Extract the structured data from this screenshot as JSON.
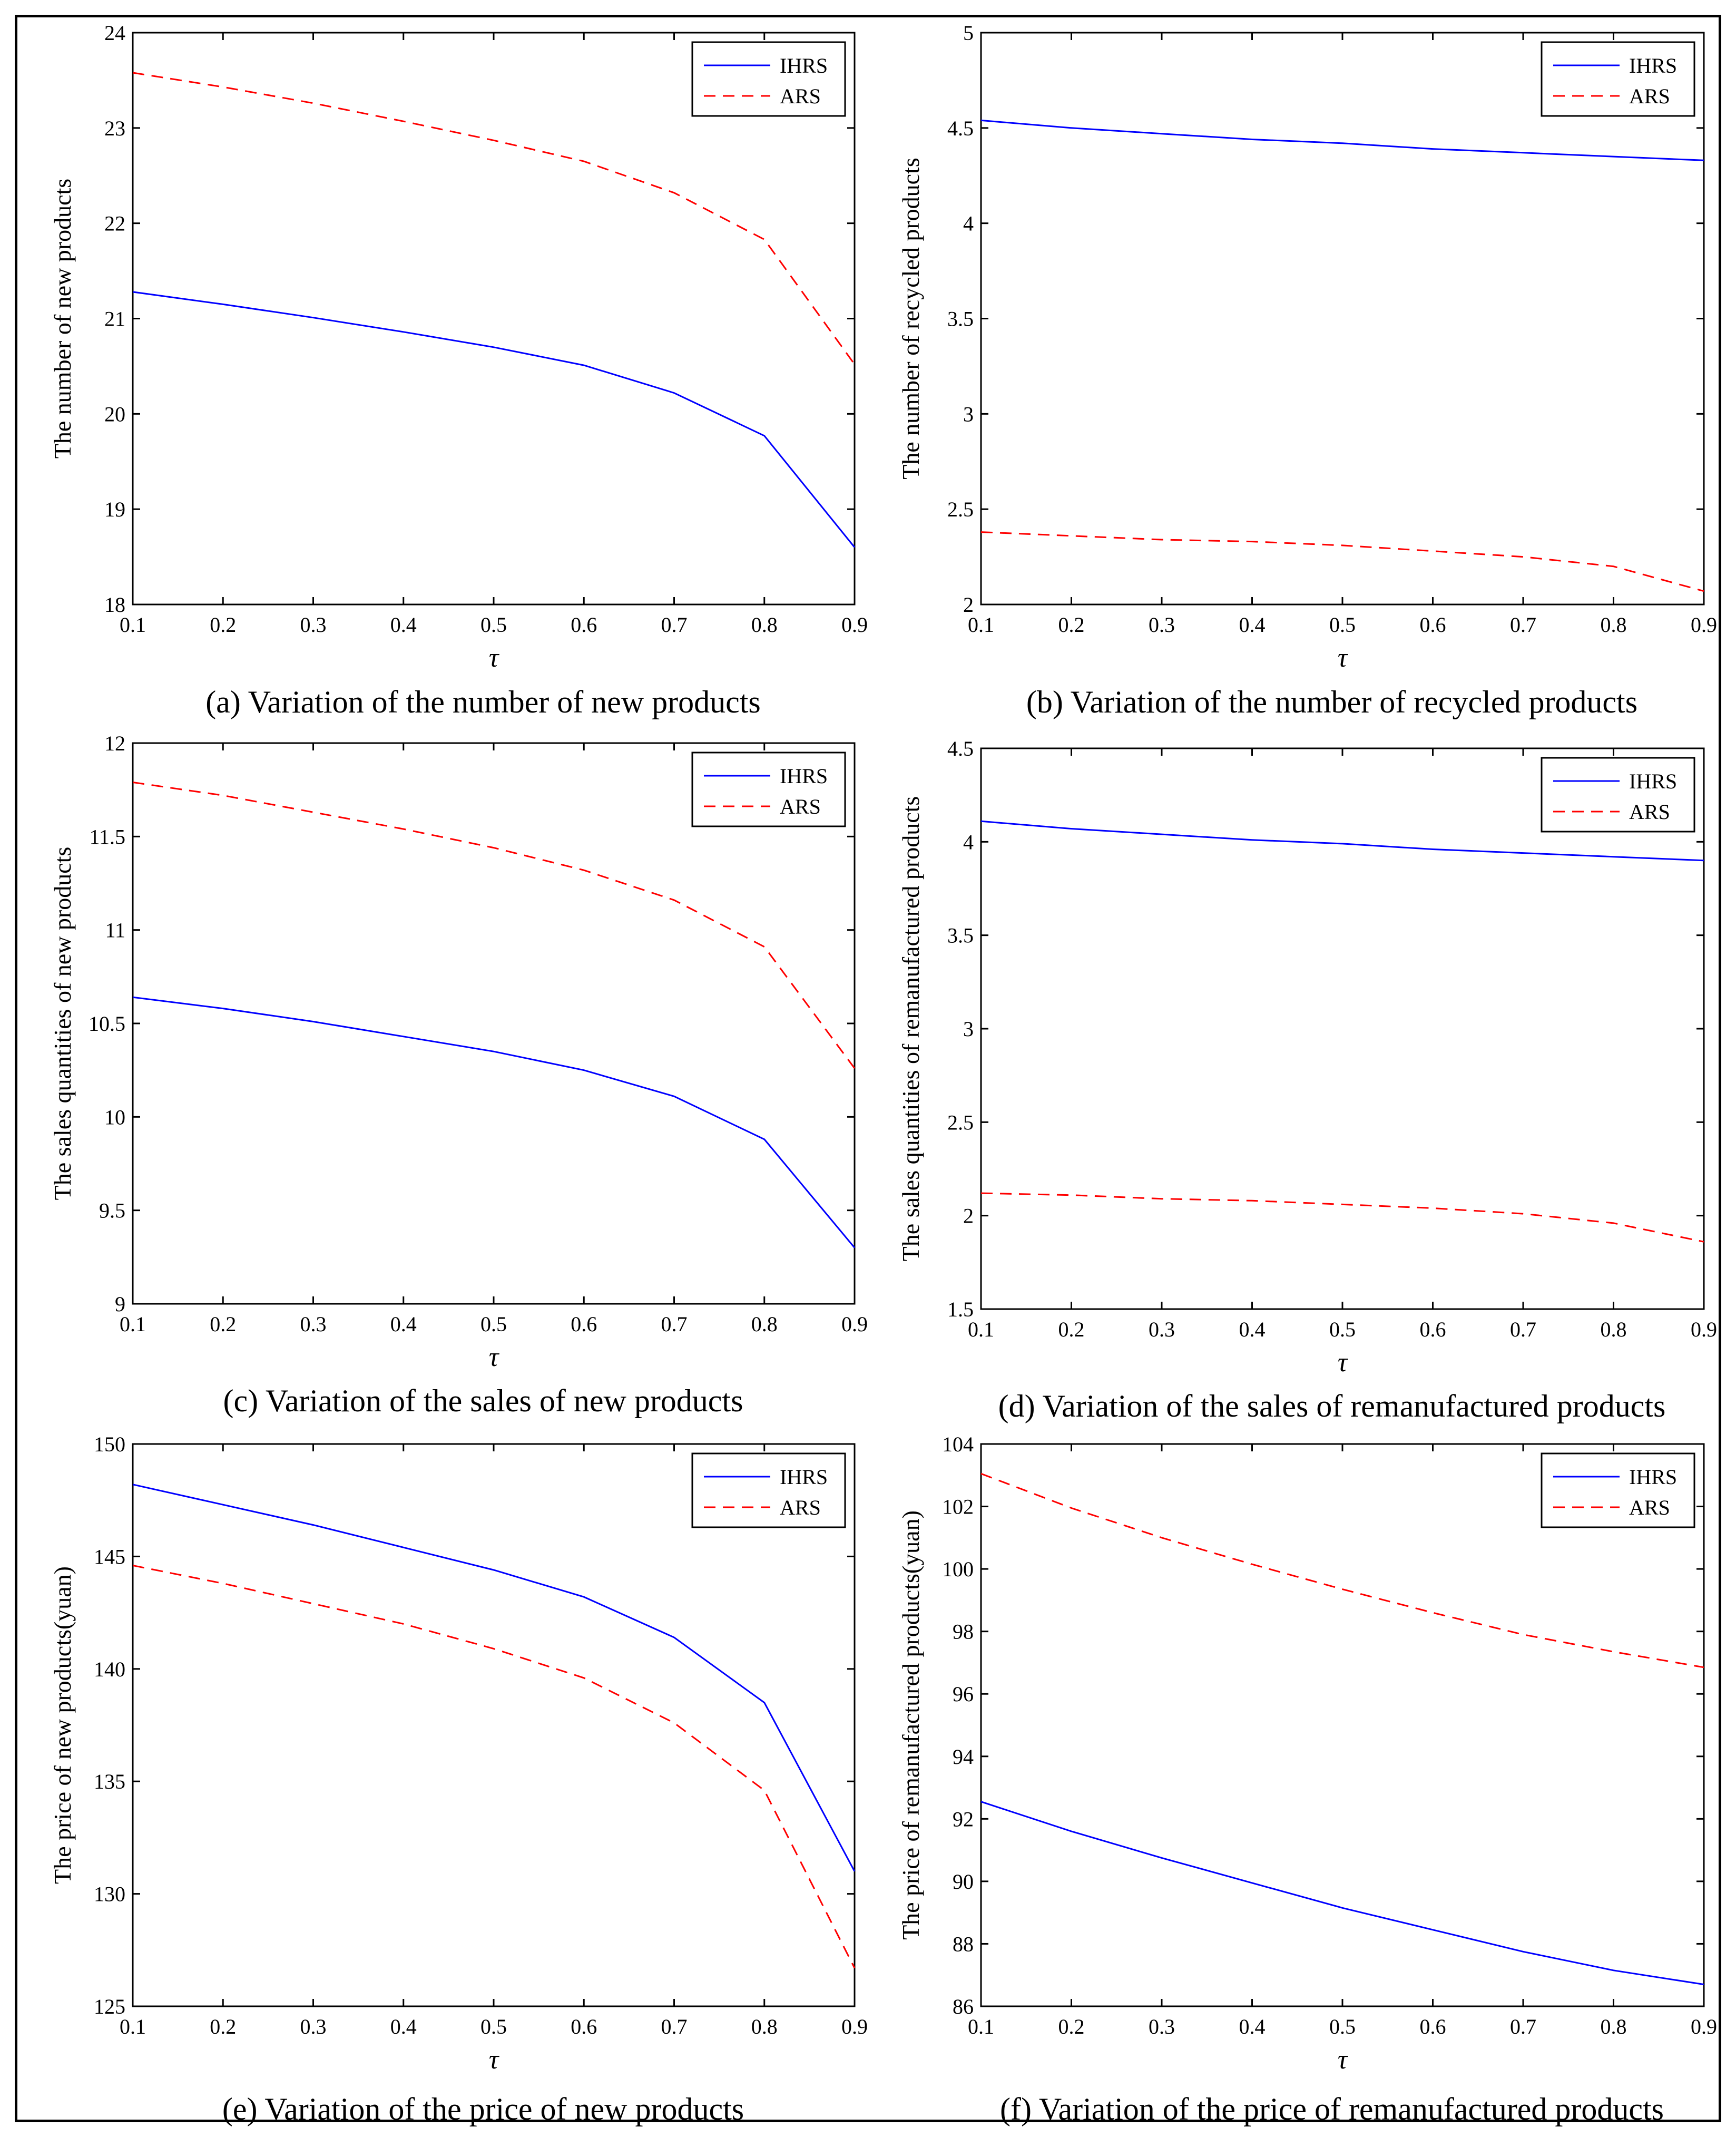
{
  "legend_labels": [
    "IHRS",
    "ARS"
  ],
  "series_colors": {
    "IHRS": "#0000ff",
    "ARS": "#ff0000"
  },
  "chart_data": [
    {
      "id": "a",
      "type": "line",
      "caption": "(a)    Variation of the number of new products",
      "xlabel": "τ",
      "ylabel": "The number of new products",
      "xlim": [
        0.1,
        0.9
      ],
      "ylim": [
        18,
        24
      ],
      "xticks": [
        0.1,
        0.2,
        0.3,
        0.4,
        0.5,
        0.6,
        0.7,
        0.8,
        0.9
      ],
      "xtick_labels": [
        "0.1",
        "0.2",
        "0.3",
        "0.4",
        "0.5",
        "0.6",
        "0.7",
        "0.8",
        "0.9"
      ],
      "yticks": [
        18,
        19,
        20,
        21,
        22,
        23,
        24
      ],
      "ytick_labels": [
        "18",
        "19",
        "20",
        "21",
        "22",
        "23",
        "24"
      ],
      "legend": "top-right",
      "grid": false,
      "x": [
        0.1,
        0.2,
        0.3,
        0.4,
        0.5,
        0.6,
        0.7,
        0.8,
        0.9
      ],
      "series": [
        {
          "name": "IHRS",
          "values": [
            21.28,
            21.15,
            21.01,
            20.86,
            20.7,
            20.51,
            20.22,
            19.77,
            18.6
          ]
        },
        {
          "name": "ARS",
          "values": [
            23.58,
            23.43,
            23.26,
            23.07,
            22.87,
            22.65,
            22.32,
            21.83,
            20.52
          ]
        }
      ]
    },
    {
      "id": "b",
      "type": "line",
      "caption": "(b)    Variation of the number of recycled products",
      "xlabel": "τ",
      "ylabel": "The number of recycled products",
      "xlim": [
        0.1,
        0.9
      ],
      "ylim": [
        2,
        5
      ],
      "xticks": [
        0.1,
        0.2,
        0.3,
        0.4,
        0.5,
        0.6,
        0.7,
        0.8,
        0.9
      ],
      "xtick_labels": [
        "0.1",
        "0.2",
        "0.3",
        "0.4",
        "0.5",
        "0.6",
        "0.7",
        "0.8",
        "0.9"
      ],
      "yticks": [
        2,
        2.5,
        3,
        3.5,
        4,
        4.5,
        5
      ],
      "ytick_labels": [
        "2",
        "2.5",
        "3",
        "3.5",
        "4",
        "4.5",
        "5"
      ],
      "legend": "top-right",
      "grid": false,
      "x": [
        0.1,
        0.2,
        0.3,
        0.4,
        0.5,
        0.6,
        0.7,
        0.8,
        0.9
      ],
      "series": [
        {
          "name": "IHRS",
          "values": [
            4.54,
            4.5,
            4.47,
            4.44,
            4.42,
            4.39,
            4.37,
            4.35,
            4.33
          ]
        },
        {
          "name": "ARS",
          "values": [
            2.38,
            2.36,
            2.34,
            2.33,
            2.31,
            2.28,
            2.25,
            2.2,
            2.07
          ]
        }
      ]
    },
    {
      "id": "c",
      "type": "line",
      "caption": "(c)    Variation of the sales of new products",
      "xlabel": "τ",
      "ylabel": "The sales quantities of new products",
      "xlim": [
        0.1,
        0.9
      ],
      "ylim": [
        9,
        12
      ],
      "xticks": [
        0.1,
        0.2,
        0.3,
        0.4,
        0.5,
        0.6,
        0.7,
        0.8,
        0.9
      ],
      "xtick_labels": [
        "0.1",
        "0.2",
        "0.3",
        "0.4",
        "0.5",
        "0.6",
        "0.7",
        "0.8",
        "0.9"
      ],
      "yticks": [
        9,
        9.5,
        10,
        10.5,
        11,
        11.5,
        12
      ],
      "ytick_labels": [
        "9",
        "9.5",
        "10",
        "10.5",
        "11",
        "11.5",
        "12"
      ],
      "legend": "top-right",
      "grid": false,
      "x": [
        0.1,
        0.2,
        0.3,
        0.4,
        0.5,
        0.6,
        0.7,
        0.8,
        0.9
      ],
      "series": [
        {
          "name": "IHRS",
          "values": [
            10.64,
            10.58,
            10.51,
            10.43,
            10.35,
            10.25,
            10.11,
            9.88,
            9.3
          ]
        },
        {
          "name": "ARS",
          "values": [
            11.79,
            11.72,
            11.63,
            11.54,
            11.44,
            11.32,
            11.16,
            10.91,
            10.26
          ]
        }
      ]
    },
    {
      "id": "d",
      "type": "line",
      "caption": "(d)    Variation of the sales of remanufactured products",
      "xlabel": "τ",
      "ylabel": "The sales quantities of remanufactured products",
      "xlim": [
        0.1,
        0.9
      ],
      "ylim": [
        1.5,
        4.5
      ],
      "xticks": [
        0.1,
        0.2,
        0.3,
        0.4,
        0.5,
        0.6,
        0.7,
        0.8,
        0.9
      ],
      "xtick_labels": [
        "0.1",
        "0.2",
        "0.3",
        "0.4",
        "0.5",
        "0.6",
        "0.7",
        "0.8",
        "0.9"
      ],
      "yticks": [
        1.5,
        2,
        2.5,
        3,
        3.5,
        4,
        4.5
      ],
      "ytick_labels": [
        "1.5",
        "2",
        "2.5",
        "3",
        "3.5",
        "4",
        "4.5"
      ],
      "legend": "top-right",
      "grid": false,
      "x": [
        0.1,
        0.2,
        0.3,
        0.4,
        0.5,
        0.6,
        0.7,
        0.8,
        0.9
      ],
      "series": [
        {
          "name": "IHRS",
          "values": [
            4.11,
            4.07,
            4.04,
            4.01,
            3.99,
            3.96,
            3.94,
            3.92,
            3.9
          ]
        },
        {
          "name": "ARS",
          "values": [
            2.12,
            2.11,
            2.09,
            2.08,
            2.06,
            2.04,
            2.01,
            1.96,
            1.86
          ]
        }
      ]
    },
    {
      "id": "e",
      "type": "line",
      "caption": "(e) Variation of the price of new products",
      "xlabel": "τ",
      "ylabel": "The price of new products(yuan)",
      "xlim": [
        0.1,
        0.9
      ],
      "ylim": [
        125,
        150
      ],
      "xticks": [
        0.1,
        0.2,
        0.3,
        0.4,
        0.5,
        0.6,
        0.7,
        0.8,
        0.9
      ],
      "xtick_labels": [
        "0.1",
        "0.2",
        "0.3",
        "0.4",
        "0.5",
        "0.6",
        "0.7",
        "0.8",
        "0.9"
      ],
      "yticks": [
        125,
        130,
        135,
        140,
        145,
        150
      ],
      "ytick_labels": [
        "125",
        "130",
        "135",
        "140",
        "145",
        "150"
      ],
      "legend": "top-right",
      "grid": false,
      "x": [
        0.1,
        0.2,
        0.3,
        0.4,
        0.5,
        0.6,
        0.7,
        0.8,
        0.9
      ],
      "series": [
        {
          "name": "IHRS",
          "values": [
            148.2,
            147.3,
            146.4,
            145.4,
            144.4,
            143.2,
            141.4,
            138.5,
            131.0
          ]
        },
        {
          "name": "ARS",
          "values": [
            144.6,
            143.8,
            142.9,
            142.0,
            140.9,
            139.6,
            137.6,
            134.6,
            126.7
          ]
        }
      ]
    },
    {
      "id": "f",
      "type": "line",
      "caption": "(f) Variation of the price of remanufactured products",
      "xlabel": "τ",
      "ylabel": "The price of remanufactured products(yuan)",
      "xlim": [
        0.1,
        0.9
      ],
      "ylim": [
        86,
        104
      ],
      "xticks": [
        0.1,
        0.2,
        0.3,
        0.4,
        0.5,
        0.6,
        0.7,
        0.8,
        0.9
      ],
      "xtick_labels": [
        "0.1",
        "0.2",
        "0.3",
        "0.4",
        "0.5",
        "0.6",
        "0.7",
        "0.8",
        "0.9"
      ],
      "yticks": [
        86,
        88,
        90,
        92,
        94,
        96,
        98,
        100,
        102,
        104
      ],
      "ytick_labels": [
        "86",
        "88",
        "90",
        "92",
        "94",
        "96",
        "98",
        "100",
        "102",
        "104"
      ],
      "legend": "top-right",
      "grid": false,
      "x": [
        0.1,
        0.2,
        0.3,
        0.4,
        0.5,
        0.6,
        0.7,
        0.8,
        0.9
      ],
      "series": [
        {
          "name": "IHRS",
          "values": [
            92.55,
            91.6,
            90.75,
            89.95,
            89.15,
            88.45,
            87.75,
            87.15,
            86.7
          ]
        },
        {
          "name": "ARS",
          "values": [
            103.05,
            101.95,
            101.0,
            100.15,
            99.35,
            98.6,
            97.9,
            97.35,
            96.85
          ]
        }
      ]
    }
  ]
}
